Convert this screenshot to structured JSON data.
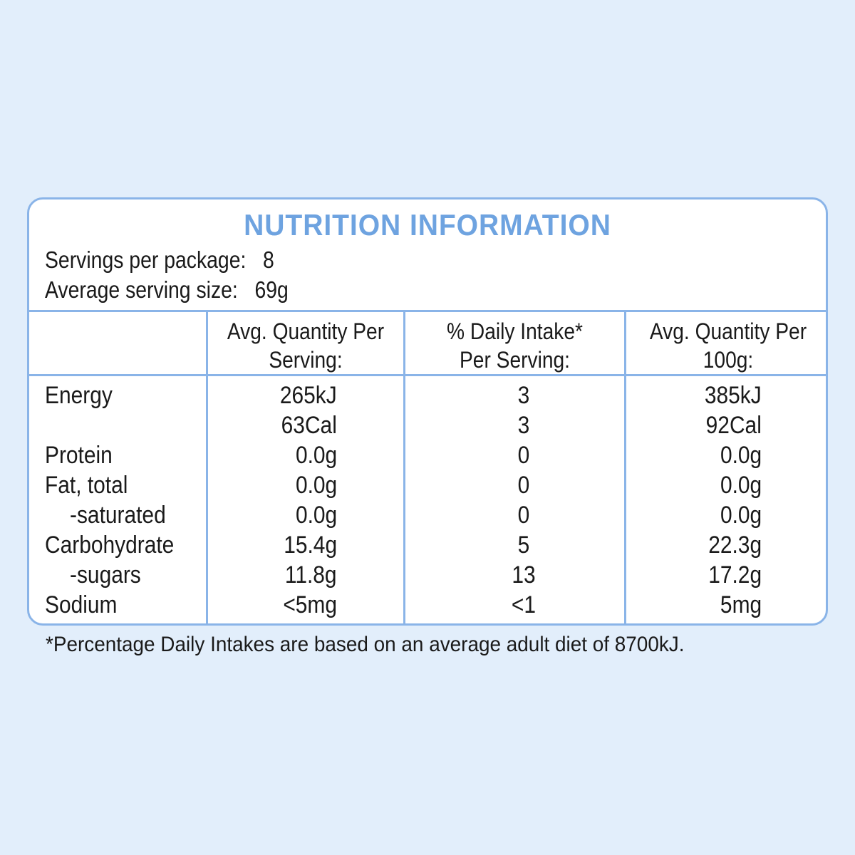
{
  "panel": {
    "title": "NUTRITION INFORMATION",
    "servings_label": "Servings per package:",
    "servings_value": "8",
    "serving_size_label": "Average serving size:",
    "serving_size_value": "69g"
  },
  "table": {
    "headers": [
      {
        "line1": "Avg. Quantity Per",
        "line2": "Serving:"
      },
      {
        "line1": "% Daily Intake*",
        "line2": "Per Serving:"
      },
      {
        "line1": "Avg. Quantity Per",
        "line2": "100g:"
      }
    ],
    "rows": [
      {
        "label": "Energy",
        "per_serving": "265kJ",
        "daily_intake": "3",
        "per_100g": "385kJ"
      },
      {
        "label": "",
        "per_serving": "63Cal",
        "daily_intake": "3",
        "per_100g": "92Cal"
      },
      {
        "label": "Protein",
        "per_serving": "0.0g",
        "daily_intake": "0",
        "per_100g": "0.0g"
      },
      {
        "label": "Fat, total",
        "per_serving": "0.0g",
        "daily_intake": "0",
        "per_100g": "0.0g"
      },
      {
        "label": "-saturated",
        "per_serving": "0.0g",
        "daily_intake": "0",
        "per_100g": "0.0g"
      },
      {
        "label": "Carbohydrate",
        "per_serving": "15.4g",
        "daily_intake": "5",
        "per_100g": "22.3g"
      },
      {
        "label": "-sugars",
        "per_serving": "11.8g",
        "daily_intake": "13",
        "per_100g": "17.2g"
      },
      {
        "label": "Sodium",
        "per_serving": "<5mg",
        "daily_intake": "<1",
        "per_100g": "5mg"
      }
    ]
  },
  "footnote": "*Percentage Daily Intakes are based on an average adult diet of 8700kJ.",
  "colors": {
    "background": "#e2eefb",
    "accent": "#6ea3e0",
    "border": "#8ab4e8",
    "panel": "#ffffff"
  }
}
